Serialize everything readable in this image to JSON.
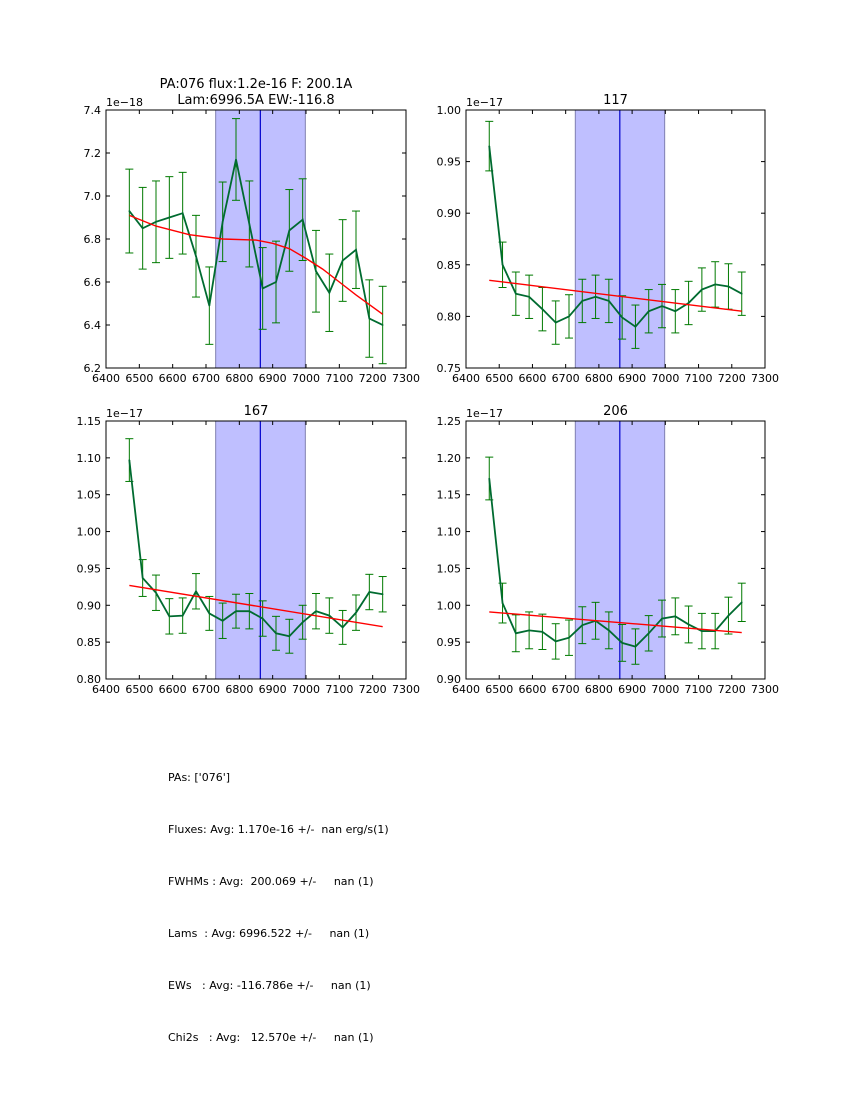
{
  "chart_data": [
    {
      "type": "line",
      "title": "PA:076 flux:1.2e-16 F: 200.1A\nLam:6996.5A EW:-116.8",
      "offset_label": "1e−18",
      "xlabel": "",
      "ylabel": "",
      "xlim": [
        6400,
        7300
      ],
      "ylim": [
        6.2,
        7.4
      ],
      "xticks": [
        6400,
        6500,
        6600,
        6700,
        6800,
        6900,
        7000,
        7100,
        7200,
        7300
      ],
      "yticks": [
        "6.2",
        "6.4",
        "6.6",
        "6.8",
        "7.0",
        "7.2",
        "7.4"
      ],
      "span": [
        6729,
        6998
      ],
      "vline": 6863,
      "x": [
        6470,
        6510,
        6550,
        6590,
        6630,
        6670,
        6710,
        6750,
        6790,
        6830,
        6870,
        6910,
        6950,
        6990,
        7030,
        7070,
        7110,
        7150,
        7190,
        7230
      ],
      "series": [
        {
          "name": "data",
          "color": "#006b30",
          "values": [
            6.93,
            6.85,
            6.88,
            6.9,
            6.92,
            6.72,
            6.49,
            6.88,
            7.17,
            6.87,
            6.57,
            6.6,
            6.84,
            6.89,
            6.65,
            6.55,
            6.7,
            6.75,
            6.43,
            6.4
          ],
          "errors": [
            0.195,
            0.19,
            0.19,
            0.19,
            0.19,
            0.19,
            0.18,
            0.185,
            0.19,
            0.2,
            0.19,
            0.19,
            0.19,
            0.19,
            0.19,
            0.18,
            0.19,
            0.18,
            0.18,
            0.18
          ]
        },
        {
          "name": "fit",
          "color": "#ff0000",
          "x": [
            6470,
            6550,
            6650,
            6750,
            6850,
            6900,
            6950,
            7000,
            7050,
            7100,
            7150,
            7230
          ],
          "values": [
            6.91,
            6.86,
            6.82,
            6.8,
            6.795,
            6.78,
            6.755,
            6.71,
            6.66,
            6.6,
            6.54,
            6.45
          ]
        }
      ]
    },
    {
      "type": "line",
      "title": "117",
      "offset_label": "1e−17",
      "xlim": [
        6400,
        7300
      ],
      "ylim": [
        0.75,
        1.0
      ],
      "xticks": [
        6400,
        6500,
        6600,
        6700,
        6800,
        6900,
        7000,
        7100,
        7200,
        7300
      ],
      "yticks": [
        "0.75",
        "0.80",
        "0.85",
        "0.90",
        "0.95",
        "1.00"
      ],
      "span": [
        6729,
        6998
      ],
      "vline": 6863,
      "x": [
        6470,
        6510,
        6550,
        6590,
        6630,
        6670,
        6710,
        6750,
        6790,
        6830,
        6870,
        6910,
        6950,
        6990,
        7030,
        7070,
        7110,
        7150,
        7190,
        7230
      ],
      "series": [
        {
          "name": "data",
          "color": "#006b30",
          "values": [
            0.965,
            0.85,
            0.822,
            0.819,
            0.807,
            0.794,
            0.8,
            0.815,
            0.819,
            0.815,
            0.799,
            0.79,
            0.805,
            0.81,
            0.805,
            0.813,
            0.826,
            0.831,
            0.829,
            0.822
          ],
          "errors": [
            0.024,
            0.022,
            0.021,
            0.021,
            0.021,
            0.021,
            0.021,
            0.021,
            0.021,
            0.021,
            0.021,
            0.021,
            0.021,
            0.021,
            0.021,
            0.021,
            0.021,
            0.022,
            0.022,
            0.021
          ]
        },
        {
          "name": "fit",
          "color": "#ff0000",
          "x": [
            6470,
            7230
          ],
          "values": [
            0.835,
            0.805
          ]
        }
      ]
    },
    {
      "type": "line",
      "title": "167",
      "offset_label": "1e−17",
      "xlim": [
        6400,
        7300
      ],
      "ylim": [
        0.8,
        1.15
      ],
      "xticks": [
        6400,
        6500,
        6600,
        6700,
        6800,
        6900,
        7000,
        7100,
        7200,
        7300
      ],
      "yticks": [
        "0.80",
        "0.85",
        "0.90",
        "0.95",
        "1.00",
        "1.05",
        "1.10",
        "1.15"
      ],
      "span": [
        6729,
        6998
      ],
      "vline": 6863,
      "x": [
        6470,
        6510,
        6550,
        6590,
        6630,
        6670,
        6710,
        6750,
        6790,
        6830,
        6870,
        6910,
        6950,
        6990,
        7030,
        7070,
        7110,
        7150,
        7190,
        7230
      ],
      "series": [
        {
          "name": "data",
          "color": "#006b30",
          "values": [
            1.097,
            0.937,
            0.917,
            0.885,
            0.886,
            0.919,
            0.889,
            0.879,
            0.892,
            0.892,
            0.882,
            0.862,
            0.858,
            0.877,
            0.892,
            0.886,
            0.87,
            0.89,
            0.918,
            0.915
          ],
          "errors": [
            0.029,
            0.025,
            0.024,
            0.024,
            0.024,
            0.024,
            0.023,
            0.024,
            0.023,
            0.024,
            0.024,
            0.023,
            0.023,
            0.023,
            0.024,
            0.024,
            0.023,
            0.024,
            0.024,
            0.024
          ]
        },
        {
          "name": "fit",
          "color": "#ff0000",
          "x": [
            6470,
            7230
          ],
          "values": [
            0.927,
            0.871
          ]
        }
      ]
    },
    {
      "type": "line",
      "title": "206",
      "offset_label": "1e−17",
      "xlim": [
        6400,
        7300
      ],
      "ylim": [
        0.9,
        1.25
      ],
      "xticks": [
        6400,
        6500,
        6600,
        6700,
        6800,
        6900,
        7000,
        7100,
        7200,
        7300
      ],
      "yticks": [
        "0.90",
        "0.95",
        "1.00",
        "1.05",
        "1.10",
        "1.15",
        "1.20",
        "1.25"
      ],
      "span": [
        6729,
        6998
      ],
      "vline": 6863,
      "x": [
        6470,
        6510,
        6550,
        6590,
        6630,
        6670,
        6710,
        6750,
        6790,
        6830,
        6870,
        6910,
        6950,
        6990,
        7030,
        7070,
        7110,
        7150,
        7190,
        7230
      ],
      "series": [
        {
          "name": "data",
          "color": "#006b30",
          "values": [
            1.172,
            1.003,
            0.962,
            0.966,
            0.964,
            0.951,
            0.956,
            0.973,
            0.979,
            0.966,
            0.949,
            0.944,
            0.962,
            0.982,
            0.985,
            0.974,
            0.965,
            0.965,
            0.986,
            1.004
          ],
          "errors": [
            0.029,
            0.027,
            0.025,
            0.025,
            0.024,
            0.024,
            0.024,
            0.025,
            0.025,
            0.025,
            0.025,
            0.024,
            0.024,
            0.025,
            0.025,
            0.025,
            0.024,
            0.024,
            0.025,
            0.026
          ]
        },
        {
          "name": "fit",
          "color": "#ff0000",
          "x": [
            6470,
            7230
          ],
          "values": [
            0.991,
            0.963
          ]
        }
      ]
    }
  ],
  "colors": {
    "span_fill": "#bfbfff",
    "span_edge": "#8080b0",
    "vline": "#0000cc",
    "data_line": "#006b30",
    "errorbar": "#007a00",
    "fit_line": "#ff0000"
  },
  "stats": {
    "pas": "PAs: ['076']",
    "fluxes": "Fluxes: Avg: 1.170e-16 +/-  nan erg/s(1)",
    "fwhms": "FWHMs : Avg:  200.069 +/-     nan (1)",
    "lams": "Lams  : Avg: 6996.522 +/-     nan (1)",
    "ews": "EWs   : Avg: -116.786e +/-     nan (1)",
    "chi2s": "Chi2s   : Avg:   12.570e +/-     nan (1)"
  }
}
